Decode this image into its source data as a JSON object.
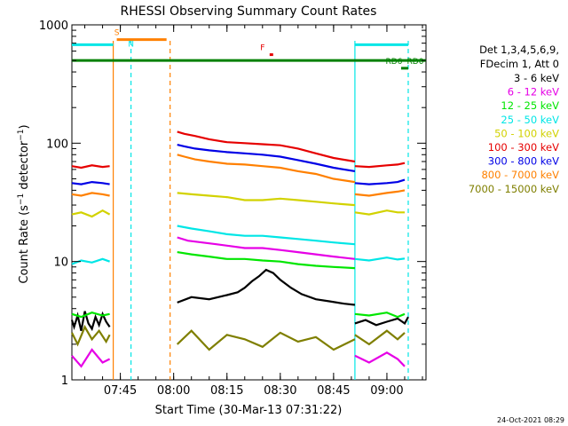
{
  "chart_data": {
    "type": "line",
    "title": "RHESSI Observing Summary Count Rates",
    "xlabel": "Start Time (30-Mar-13 07:31:22)",
    "ylabel": "Count Rate (s⁻¹ detector⁻¹)",
    "ylabel_main": "Count Rate (s",
    "ylabel_sup1": "−1",
    "ylabel_mid": " detector",
    "ylabel_sup2": "−1",
    "ylabel_end": ")",
    "yscale": "log",
    "ylim": [
      1,
      1000
    ],
    "xlim": [
      "07:31:22",
      "09:11:00"
    ],
    "x_ticks": [
      "07:45",
      "08:00",
      "08:15",
      "08:30",
      "08:45",
      "09:00"
    ],
    "y_ticks": [
      {
        "value": 1,
        "label": "1"
      },
      {
        "value": 10,
        "label": "10"
      },
      {
        "value": 100,
        "label": "100"
      },
      {
        "value": 1000,
        "label": "1000"
      }
    ],
    "grid": false,
    "legend_header": [
      "Det 1,3,4,5,6,9,",
      "FDecim 1, Att 0"
    ],
    "legend_position": "right",
    "series": [
      {
        "name": "3 - 6 keV",
        "color": "#000000",
        "segments": [
          {
            "t": [
              "07:31:22",
              "07:32",
              "07:33",
              "07:34",
              "07:35",
              "07:36",
              "07:37",
              "07:38",
              "07:39",
              "07:40",
              "07:41",
              "07:42"
            ],
            "v": [
              3.2,
              2.8,
              3.5,
              2.6,
              3.8,
              3.0,
              2.7,
              3.4,
              2.9,
              3.6,
              3.1,
              2.8
            ]
          },
          {
            "t": [
              "08:01",
              "08:05",
              "08:10",
              "08:15",
              "08:18",
              "08:20",
              "08:22",
              "08:24",
              "08:26",
              "08:28",
              "08:30",
              "08:33",
              "08:36",
              "08:40",
              "08:44",
              "08:48",
              "08:51"
            ],
            "v": [
              4.5,
              5.0,
              4.8,
              5.2,
              5.5,
              6.0,
              6.8,
              7.5,
              8.5,
              8.0,
              7.0,
              6.0,
              5.3,
              4.8,
              4.6,
              4.4,
              4.3
            ]
          },
          {
            "t": [
              "08:51",
              "08:54",
              "08:57",
              "09:00",
              "09:03",
              "09:05",
              "09:06"
            ],
            "v": [
              3.0,
              3.2,
              2.9,
              3.1,
              3.3,
              3.0,
              3.4
            ]
          }
        ]
      },
      {
        "name": "6 - 12 keV",
        "color": "#e600e6",
        "segments": [
          {
            "t": [
              "07:31:22",
              "07:34",
              "07:37",
              "07:40",
              "07:42"
            ],
            "v": [
              1.6,
              1.3,
              1.8,
              1.4,
              1.5
            ]
          },
          {
            "t": [
              "08:01",
              "08:04",
              "08:08",
              "08:12",
              "08:16",
              "08:20",
              "08:25",
              "08:30",
              "08:35",
              "08:40",
              "08:45",
              "08:51"
            ],
            "v": [
              16,
              15,
              14.5,
              14,
              13.5,
              13,
              13,
              12.5,
              12,
              11.5,
              11,
              10.5
            ]
          },
          {
            "t": [
              "08:51",
              "08:55",
              "09:00",
              "09:03",
              "09:05"
            ],
            "v": [
              1.6,
              1.4,
              1.7,
              1.5,
              1.3
            ]
          }
        ]
      },
      {
        "name": "12 - 25 keV",
        "color": "#00e600",
        "segments": [
          {
            "t": [
              "07:31:22",
              "07:34",
              "07:37",
              "07:40",
              "07:42"
            ],
            "v": [
              3.6,
              3.4,
              3.7,
              3.5,
              3.6
            ]
          },
          {
            "t": [
              "08:01",
              "08:05",
              "08:10",
              "08:15",
              "08:20",
              "08:25",
              "08:30",
              "08:35",
              "08:40",
              "08:45",
              "08:51"
            ],
            "v": [
              12,
              11.5,
              11,
              10.5,
              10.5,
              10.2,
              10,
              9.5,
              9.2,
              9,
              8.8
            ]
          },
          {
            "t": [
              "08:51",
              "08:55",
              "09:00",
              "09:03",
              "09:05"
            ],
            "v": [
              3.6,
              3.5,
              3.7,
              3.4,
              3.6
            ]
          }
        ]
      },
      {
        "name": "25 - 50 keV",
        "color": "#00e6e6",
        "segments": [
          {
            "t": [
              "07:31:22",
              "07:34",
              "07:37",
              "07:40",
              "07:42"
            ],
            "v": [
              9.5,
              10.2,
              9.8,
              10.5,
              10.0
            ]
          },
          {
            "t": [
              "08:01",
              "08:05",
              "08:10",
              "08:15",
              "08:20",
              "08:25",
              "08:30",
              "08:35",
              "08:40",
              "08:45",
              "08:51"
            ],
            "v": [
              20,
              19,
              18,
              17,
              16.5,
              16.5,
              16,
              15.5,
              15,
              14.5,
              14
            ]
          },
          {
            "t": [
              "08:51",
              "08:55",
              "09:00",
              "09:03",
              "09:05"
            ],
            "v": [
              10.5,
              10.2,
              10.8,
              10.4,
              10.6
            ]
          }
        ]
      },
      {
        "name": "50 - 100 keV",
        "color": "#d2d200",
        "segments": [
          {
            "t": [
              "07:31:22",
              "07:34",
              "07:37",
              "07:40",
              "07:42"
            ],
            "v": [
              25,
              26,
              24,
              27,
              25
            ]
          },
          {
            "t": [
              "08:01",
              "08:05",
              "08:10",
              "08:15",
              "08:20",
              "08:25",
              "08:30",
              "08:35",
              "08:40",
              "08:45",
              "08:51"
            ],
            "v": [
              38,
              37,
              36,
              35,
              33,
              33,
              34,
              33,
              32,
              31,
              30
            ]
          },
          {
            "t": [
              "08:51",
              "08:55",
              "09:00",
              "09:03",
              "09:05"
            ],
            "v": [
              26,
              25,
              27,
              26,
              26
            ]
          }
        ]
      },
      {
        "name": "100 - 300 keV",
        "color": "#e60000",
        "segments": [
          {
            "t": [
              "07:31:22",
              "07:34",
              "07:37",
              "07:40",
              "07:42"
            ],
            "v": [
              64,
              62,
              65,
              63,
              64
            ]
          },
          {
            "t": [
              "08:01",
              "08:03",
              "08:06",
              "08:10",
              "08:15",
              "08:20",
              "08:25",
              "08:30",
              "08:35",
              "08:40",
              "08:45",
              "08:51"
            ],
            "v": [
              125,
              120,
              115,
              108,
              102,
              100,
              98,
              96,
              90,
              82,
              75,
              70
            ]
          },
          {
            "t": [
              "08:51",
              "08:55",
              "09:00",
              "09:03",
              "09:05"
            ],
            "v": [
              64,
              63,
              65,
              66,
              68
            ]
          }
        ]
      },
      {
        "name": "300 - 800 keV",
        "color": "#0000e6",
        "segments": [
          {
            "t": [
              "07:31:22",
              "07:34",
              "07:37",
              "07:40",
              "07:42"
            ],
            "v": [
              46,
              45,
              47,
              46,
              45
            ]
          },
          {
            "t": [
              "08:01",
              "08:03",
              "08:06",
              "08:10",
              "08:15",
              "08:20",
              "08:25",
              "08:30",
              "08:35",
              "08:40",
              "08:45",
              "08:51"
            ],
            "v": [
              97,
              94,
              90,
              87,
              84,
              82,
              80,
              77,
              72,
              67,
              62,
              58
            ]
          },
          {
            "t": [
              "08:51",
              "08:55",
              "09:00",
              "09:03",
              "09:05"
            ],
            "v": [
              46,
              45,
              46,
              47,
              49
            ]
          }
        ]
      },
      {
        "name": "800 - 7000 keV",
        "color": "#ff8000",
        "segments": [
          {
            "t": [
              "07:31:22",
              "07:34",
              "07:37",
              "07:40",
              "07:42"
            ],
            "v": [
              37,
              36,
              38,
              37,
              36
            ]
          },
          {
            "t": [
              "08:01",
              "08:03",
              "08:06",
              "08:10",
              "08:15",
              "08:20",
              "08:25",
              "08:30",
              "08:35",
              "08:40",
              "08:45",
              "08:51"
            ],
            "v": [
              80,
              77,
              73,
              70,
              67,
              66,
              64,
              62,
              58,
              55,
              50,
              47
            ]
          },
          {
            "t": [
              "08:51",
              "08:55",
              "09:00",
              "09:03",
              "09:05"
            ],
            "v": [
              37,
              36,
              38,
              39,
              40
            ]
          }
        ]
      },
      {
        "name": "7000 - 15000 keV",
        "color": "#7f7f00",
        "segments": [
          {
            "t": [
              "07:31:22",
              "07:33",
              "07:35",
              "07:37",
              "07:39",
              "07:41",
              "07:42"
            ],
            "v": [
              2.5,
              2.0,
              2.8,
              2.2,
              2.6,
              2.1,
              2.4
            ]
          },
          {
            "t": [
              "08:01",
              "08:05",
              "08:10",
              "08:15",
              "08:20",
              "08:25",
              "08:30",
              "08:35",
              "08:40",
              "08:45",
              "08:51"
            ],
            "v": [
              2.0,
              2.6,
              1.8,
              2.4,
              2.2,
              1.9,
              2.5,
              2.1,
              2.3,
              1.8,
              2.2
            ]
          },
          {
            "t": [
              "08:51",
              "08:55",
              "09:00",
              "09:03",
              "09:05"
            ],
            "v": [
              2.4,
              2.0,
              2.6,
              2.2,
              2.5
            ]
          }
        ]
      }
    ],
    "annotations": [
      {
        "text": "S",
        "color": "#ff8000",
        "t": "07:44"
      },
      {
        "text": "N",
        "color": "#00e6e6",
        "t": "07:48"
      },
      {
        "text": "F",
        "color": "#e60000",
        "t": "08:25"
      },
      {
        "text": "RD0",
        "color": "#008000",
        "t": "09:08"
      },
      {
        "text": "RD6",
        "color": "#008000",
        "t": "09:02"
      }
    ],
    "flag_bars": [
      {
        "label": "SAA",
        "color": "#ff8000",
        "start": "07:44",
        "end": "07:58",
        "level": 750
      },
      {
        "label": "Night",
        "color": "#00e6e6",
        "start": "07:31:22",
        "end": "07:43",
        "level": 680
      },
      {
        "label": "Night",
        "color": "#00e6e6",
        "start": "08:51",
        "end": "09:06",
        "level": 680
      },
      {
        "label": "RD0",
        "color": "#008000",
        "start": "07:31:22",
        "end": "09:11:00",
        "level": 500
      },
      {
        "label": "Flare",
        "color": "#e60000",
        "start": "08:27",
        "end": "08:28",
        "level": 560
      },
      {
        "label": "RD6",
        "color": "#008000",
        "start": "09:04",
        "end": "09:06",
        "level": 430
      }
    ],
    "vertical_markers": [
      {
        "t": "07:43",
        "color": "#ff8000",
        "style": "solid"
      },
      {
        "t": "07:48",
        "color": "#00e6e6",
        "style": "dashed"
      },
      {
        "t": "07:59",
        "color": "#ff8000",
        "style": "dashed"
      },
      {
        "t": "08:51",
        "color": "#00e6e6",
        "style": "solid"
      },
      {
        "t": "09:06",
        "color": "#00e6e6",
        "style": "dashed"
      }
    ],
    "timestamp": "24-Oct-2021 08:29"
  }
}
